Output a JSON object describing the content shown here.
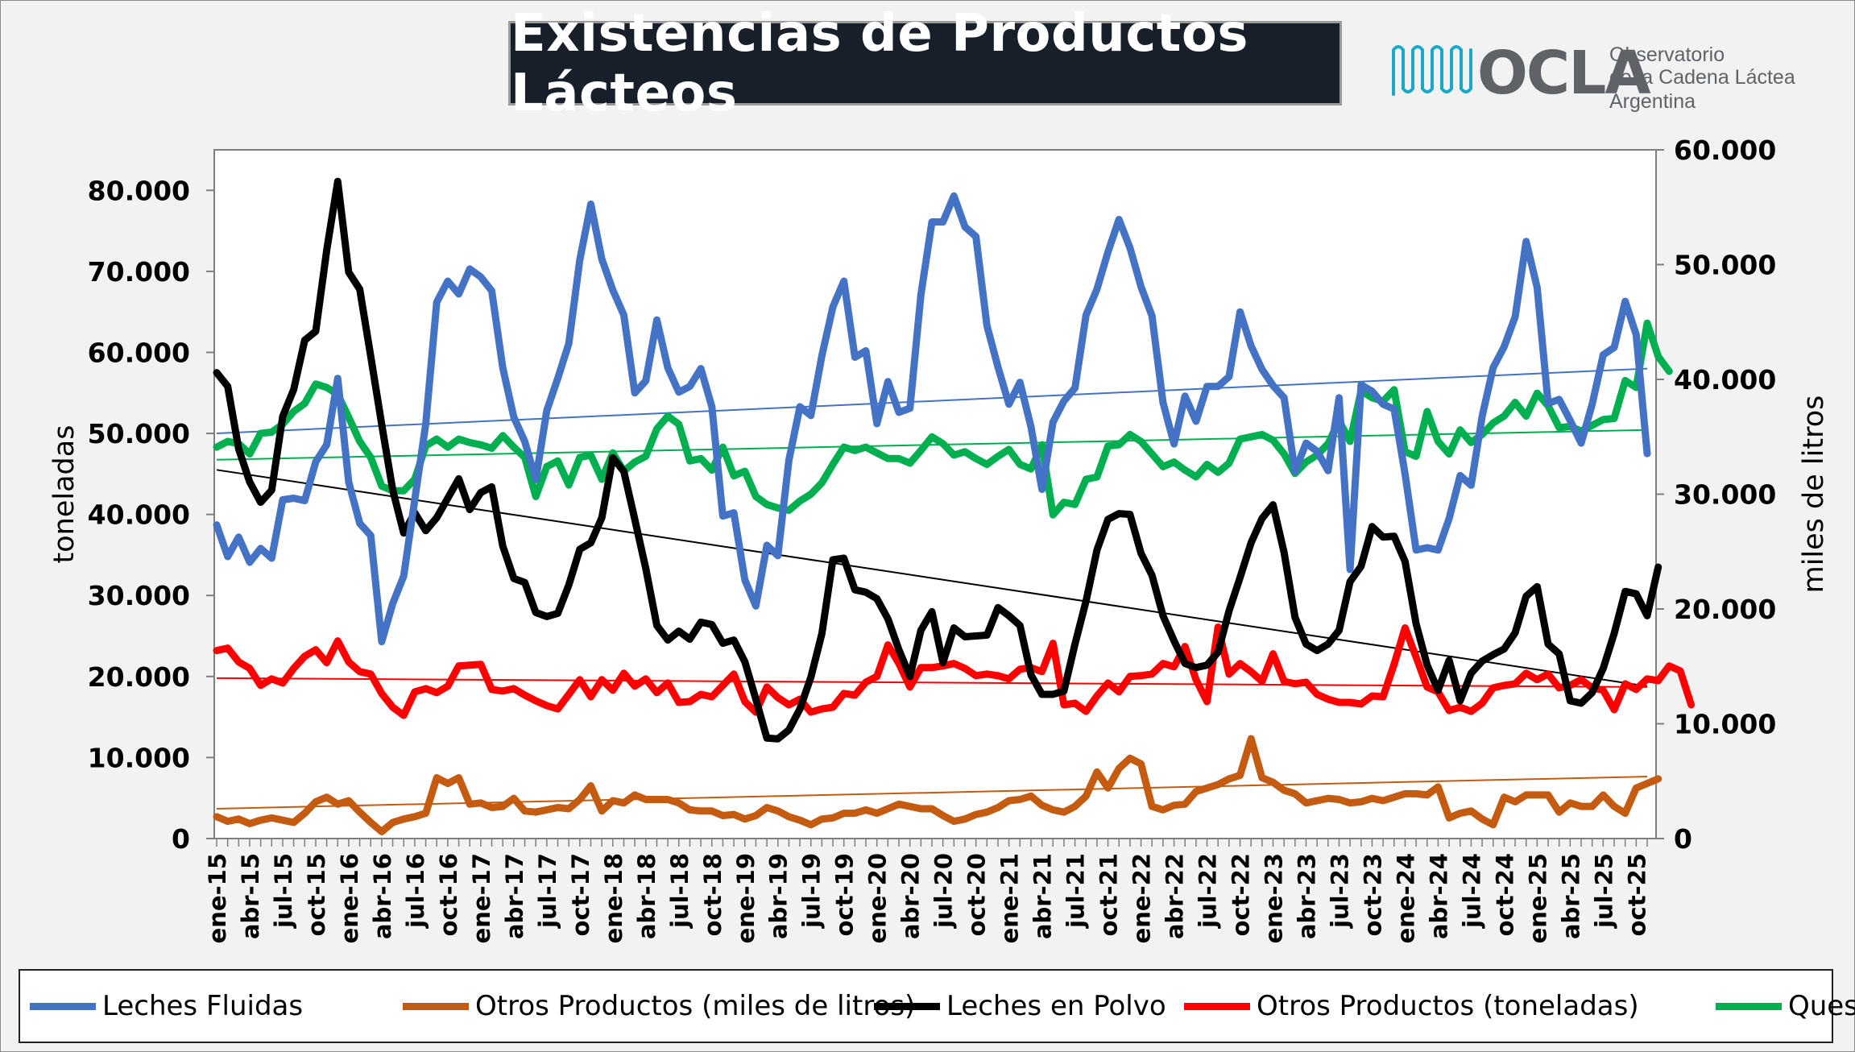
{
  "title": "Existencias de Productos Lácteos",
  "logo": {
    "name": "OCLA",
    "line1": "Observatorio",
    "line2": "de la Cadena Láctea",
    "line3": "Argentina",
    "color": "#1ba8c8"
  },
  "chart_data": {
    "type": "line",
    "ylabel_left": "toneladas",
    "ylabel_right": "miles de litros",
    "y_left_range": [
      0,
      85000
    ],
    "y_right_range": [
      0,
      60000
    ],
    "y_left_ticks": [
      "0",
      "10.000",
      "20.000",
      "30.000",
      "40.000",
      "50.000",
      "60.000",
      "70.000",
      "80.000"
    ],
    "y_right_ticks": [
      "0",
      "10.000",
      "20.000",
      "30.000",
      "40.000",
      "50.000",
      "60.000"
    ],
    "x_tick_labels": [
      "ene-15",
      "abr-15",
      "jul-15",
      "oct-15",
      "ene-16",
      "abr-16",
      "jul-16",
      "oct-16",
      "ene-17",
      "abr-17",
      "jul-17",
      "oct-17",
      "ene-18",
      "abr-18",
      "jul-18",
      "oct-18",
      "ene-19",
      "abr-19",
      "jul-19",
      "oct-19",
      "ene-20",
      "abr-20",
      "jul-20",
      "oct-20",
      "ene-21",
      "abr-21",
      "jul-21",
      "oct-21",
      "ene-22",
      "abr-22",
      "jul-22",
      "oct-22",
      "ene-23",
      "abr-23",
      "jul-23",
      "oct-23",
      "ene-24",
      "abr-24",
      "jul-24",
      "oct-24",
      "ene-25",
      "abr-25",
      "jul-25",
      "oct-25"
    ],
    "series": [
      {
        "name": "Leches Fluidas",
        "axis": "left",
        "color": "#4472c4",
        "trendline": [
          50000,
          58000
        ],
        "values": [
          38700,
          34800,
          37200,
          34100,
          35800,
          34600,
          41800,
          42000,
          41700,
          46500,
          48600,
          56800,
          44000,
          38900,
          37400,
          24300,
          29000,
          32400,
          41800,
          51200,
          66200,
          68800,
          67200,
          70300,
          69300,
          67600,
          58100,
          52000,
          49000,
          44300,
          52800,
          56800,
          61100,
          71400,
          78300,
          71500,
          67700,
          64600,
          55000,
          56500,
          64000,
          58100,
          55100,
          55800,
          58000,
          53300,
          39800,
          40200,
          31900,
          28700,
          36200,
          34900,
          46700,
          53300,
          52200,
          59600,
          65600,
          68800,
          59400,
          60200,
          51200,
          56400,
          52600,
          53100,
          67100,
          76100,
          76100,
          79300,
          75500,
          74300,
          63300,
          58200,
          53600,
          56300,
          50800,
          43100,
          51400,
          54000,
          55600,
          64600,
          67800,
          72400,
          76400,
          72900,
          68100,
          64500,
          53800,
          48700,
          54600,
          51500,
          55800,
          55800,
          57000,
          65000,
          60800,
          57900,
          55900,
          54400,
          45300,
          48800,
          47800,
          45400,
          54400,
          33200,
          56000,
          55200,
          53600,
          53000,
          45000,
          35600,
          35900,
          35600,
          39500,
          44800,
          43600,
          52100,
          58100,
          60700,
          64400,
          73700,
          68000,
          53700,
          54200,
          51600,
          48800,
          53600,
          59700,
          60600,
          66300,
          62200,
          47500
        ]
      },
      {
        "name": "Otros Productos (miles de litros)",
        "axis": "right",
        "color": "#c55a11",
        "trendline": [
          2600,
          5400
        ],
        "values": [
          1900,
          1500,
          1700,
          1300,
          1600,
          1800,
          1600,
          1400,
          2200,
          3200,
          3600,
          3000,
          3300,
          2300,
          1400,
          600,
          1400,
          1700,
          1900,
          2200,
          5300,
          4800,
          5300,
          3000,
          3100,
          2700,
          2800,
          3500,
          2400,
          2300,
          2500,
          2700,
          2600,
          3400,
          4600,
          2400,
          3300,
          3100,
          3800,
          3400,
          3400,
          3400,
          3100,
          2500,
          2400,
          2400,
          2000,
          2100,
          1700,
          2000,
          2700,
          2400,
          1900,
          1600,
          1200,
          1700,
          1800,
          2200,
          2200,
          2500,
          2200,
          2600,
          3000,
          2800,
          2600,
          2600,
          2000,
          1500,
          1700,
          2100,
          2300,
          2700,
          3300,
          3400,
          3700,
          2900,
          2500,
          2300,
          2800,
          3700,
          5800,
          4400,
          6100,
          7000,
          6500,
          2800,
          2500,
          2900,
          3000,
          4100,
          4400,
          4700,
          5200,
          5500,
          8700,
          5300,
          4900,
          4200,
          3900,
          3100,
          3300,
          3500,
          3400,
          3100,
          3200,
          3500,
          3300,
          3600,
          3900,
          3900,
          3800,
          4500,
          1800,
          2200,
          2400,
          1700,
          1200,
          3600,
          3200,
          3800,
          3800,
          3800,
          2300,
          3100,
          2800,
          2800,
          3800,
          2800,
          2200,
          4400,
          4800,
          5200
        ]
      },
      {
        "name": "Leches en Polvo",
        "axis": "left",
        "color": "#000000",
        "trendline": [
          45500,
          18800
        ],
        "values": [
          57500,
          55800,
          48100,
          44000,
          41500,
          43000,
          52100,
          55400,
          61500,
          62600,
          72600,
          81100,
          69900,
          67800,
          59500,
          51100,
          43000,
          37700,
          40200,
          38000,
          39600,
          42000,
          44400,
          40600,
          42700,
          43400,
          36100,
          32100,
          31600,
          27900,
          27400,
          27800,
          31300,
          35700,
          36500,
          39600,
          47000,
          45300,
          39400,
          33300,
          26300,
          24500,
          25600,
          24600,
          26700,
          26400,
          24100,
          24500,
          21800,
          17200,
          12400,
          12300,
          13400,
          16000,
          19900,
          25300,
          34400,
          34600,
          30700,
          30400,
          29600,
          27100,
          23300,
          20000,
          25700,
          28000,
          21700,
          26000,
          24900,
          25000,
          25100,
          28500,
          27500,
          26300,
          20200,
          17800,
          17800,
          18200,
          24000,
          29300,
          35600,
          39400,
          40100,
          40000,
          35200,
          32500,
          27500,
          24400,
          21600,
          21100,
          21400,
          23000,
          28100,
          32200,
          36500,
          39500,
          41200,
          35300,
          27300,
          24000,
          23200,
          24000,
          25700,
          31700,
          33600,
          38500,
          37200,
          37300,
          34200,
          26500,
          21400,
          18300,
          22000,
          17000,
          20400,
          21900,
          22700,
          23400,
          25400,
          29900,
          31100,
          24000,
          22800,
          17000,
          16700,
          18000,
          21000,
          25300,
          30500,
          30200,
          27500,
          33500
        ]
      },
      {
        "name": "Otros Productos (toneladas)",
        "axis": "left",
        "color": "#ff0000",
        "trendline": [
          19800,
          18700
        ],
        "values": [
          23200,
          23500,
          21800,
          21000,
          18900,
          19700,
          19200,
          21000,
          22500,
          23300,
          21700,
          24400,
          21800,
          20600,
          20300,
          17900,
          16200,
          15200,
          18100,
          18500,
          18000,
          18800,
          21300,
          21400,
          21500,
          18400,
          18200,
          18500,
          17700,
          17000,
          16400,
          16000,
          17800,
          19600,
          17500,
          19600,
          18300,
          20400,
          18800,
          19700,
          18000,
          19200,
          16800,
          16900,
          17800,
          17500,
          18900,
          20300,
          16900,
          15600,
          18700,
          17400,
          16500,
          17200,
          15600,
          16000,
          16200,
          17900,
          17700,
          19300,
          20000,
          23900,
          21600,
          18700,
          21100,
          21100,
          21300,
          21600,
          21000,
          20100,
          20300,
          20100,
          19700,
          20900,
          21100,
          20600,
          24100,
          16500,
          16700,
          15700,
          17600,
          19200,
          18100,
          20000,
          20100,
          20300,
          21600,
          21200,
          23700,
          19600,
          16900,
          26100,
          20300,
          21600,
          20600,
          19400,
          22800,
          19400,
          19100,
          19300,
          17800,
          17200,
          16800,
          16800,
          16600,
          17600,
          17500,
          21500,
          26000,
          22400,
          18700,
          18100,
          15800,
          16200,
          15700,
          16700,
          18600,
          18900,
          19100,
          20400,
          19600,
          20300,
          18600,
          18900,
          19600,
          18600,
          18300,
          15900,
          19100,
          18400,
          19700,
          19500,
          21300,
          20700,
          16500
        ]
      },
      {
        "name": "Quesos",
        "axis": "right",
        "color": "#00b050",
        "trendline": [
          33000,
          35600
        ],
        "values": [
          34100,
          34600,
          34400,
          33500,
          35300,
          35400,
          36100,
          37200,
          37900,
          39600,
          39300,
          38700,
          36700,
          34600,
          33200,
          30700,
          30300,
          30300,
          31300,
          34200,
          34800,
          34100,
          34800,
          34500,
          34300,
          34000,
          35100,
          34100,
          33200,
          29800,
          32400,
          32900,
          30800,
          33200,
          33400,
          31300,
          33600,
          32000,
          32800,
          33300,
          35700,
          36800,
          36100,
          32900,
          33100,
          32100,
          34100,
          31600,
          32000,
          29800,
          29100,
          28800,
          28600,
          29400,
          30000,
          31000,
          32600,
          34100,
          33800,
          34100,
          33600,
          33100,
          33100,
          32700,
          33800,
          35000,
          34400,
          33400,
          33700,
          33100,
          32600,
          33300,
          33900,
          32600,
          32200,
          34300,
          28200,
          29300,
          29100,
          31300,
          31500,
          34200,
          34300,
          35200,
          34600,
          33500,
          32400,
          32800,
          32100,
          31500,
          32600,
          31900,
          32700,
          34800,
          35000,
          35200,
          34700,
          33500,
          31800,
          32800,
          33400,
          34400,
          36400,
          34600,
          39000,
          38400,
          38100,
          39100,
          33700,
          33300,
          37200,
          34600,
          33500,
          35600,
          34500,
          35200,
          36200,
          36800,
          38000,
          36800,
          38800,
          37700,
          35800,
          35900,
          35500,
          36000,
          36500,
          36600,
          39900,
          39300,
          44900,
          42000,
          40700
        ]
      }
    ]
  }
}
